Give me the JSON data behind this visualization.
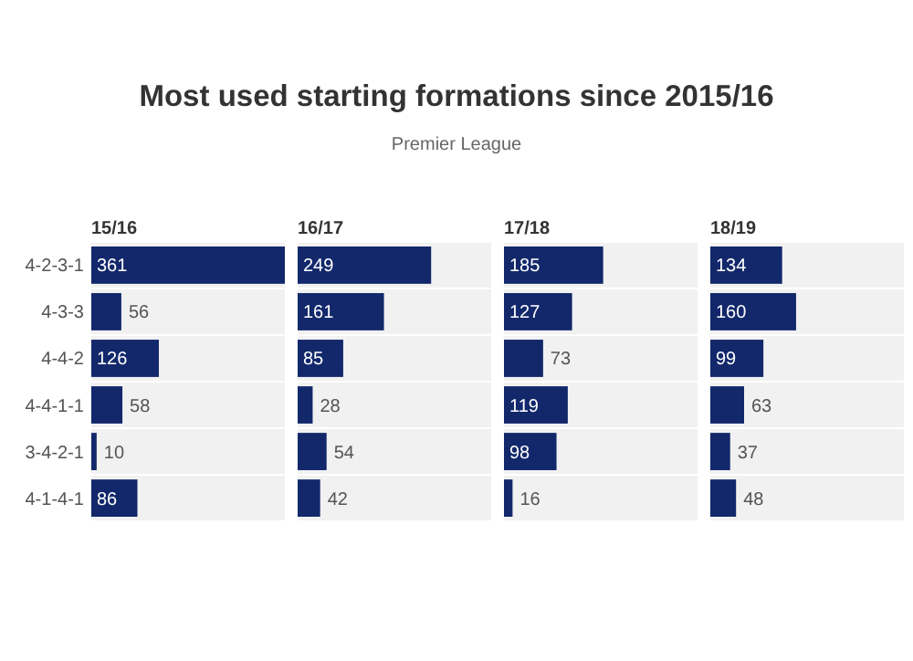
{
  "chart_data": [
    {
      "type": "other",
      "title": "Most used starting formations since 2015/16",
      "subtitle": "Premier League"
    },
    {
      "type": "bar",
      "orientation": "horizontal",
      "title": "15/16",
      "categories": [
        "4-2-3-1",
        "4-3-3",
        "4-4-2",
        "4-4-1-1",
        "3-4-2-1",
        "4-1-4-1"
      ],
      "values": [
        361,
        56,
        126,
        58,
        10,
        86
      ],
      "color": "#12286b",
      "data_labels": true,
      "tick_labels": "y"
    },
    {
      "type": "bar",
      "orientation": "horizontal",
      "title": "16/17",
      "categories": [
        null,
        null,
        null,
        null,
        null,
        null
      ],
      "values": [
        249,
        161,
        85,
        28,
        54,
        42
      ],
      "color": "#12286b",
      "data_labels": true,
      "tick_labels": false
    },
    {
      "type": "bar",
      "orientation": "horizontal",
      "title": "17/18",
      "categories": [
        null,
        null,
        null,
        null,
        null,
        null
      ],
      "values": [
        185,
        127,
        73,
        119,
        98,
        16
      ],
      "color": "#12286b",
      "data_labels": true,
      "tick_labels": false
    },
    {
      "type": "bar",
      "orientation": "horizontal",
      "title": "18/19",
      "categories": [
        null,
        null,
        null,
        null,
        null,
        null
      ],
      "values": [
        134,
        160,
        99,
        63,
        37,
        48
      ],
      "color": "#12286b",
      "data_labels": true,
      "tick_labels": false
    }
  ]
}
